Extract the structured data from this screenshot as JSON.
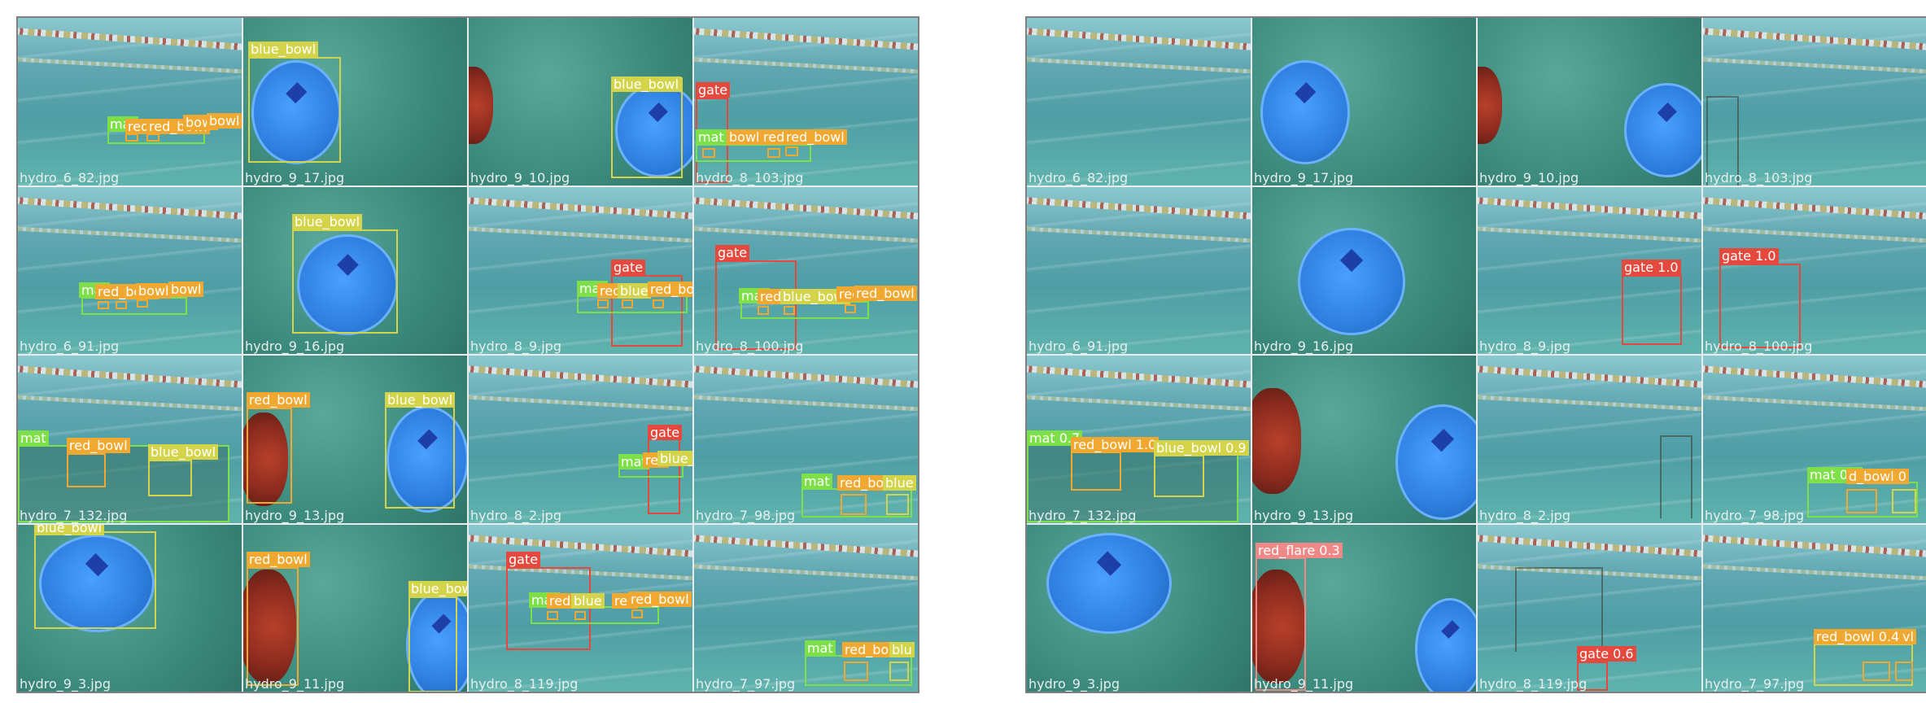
{
  "colors": {
    "blue_bowl": "#d4d44a",
    "red_bowl": "#f0a830",
    "mat": "#7ee048",
    "gate": "#e5483c",
    "red_flare": "#f08888"
  },
  "left": {
    "tiles": [
      {
        "filename": "hydro_6_82.jpg",
        "scene": "pool"
      },
      {
        "filename": "hydro_9_17.jpg",
        "scene": "green"
      },
      {
        "filename": "hydro_9_10.jpg",
        "scene": "green"
      },
      {
        "filename": "hydro_8_103.jpg",
        "scene": "pool"
      },
      {
        "filename": "hydro_6_91.jpg",
        "scene": "pool"
      },
      {
        "filename": "hydro_9_16.jpg",
        "scene": "green"
      },
      {
        "filename": "hydro_8_9.jpg",
        "scene": "pool"
      },
      {
        "filename": "hydro_8_100.jpg",
        "scene": "pool"
      },
      {
        "filename": "hydro_7_132.jpg",
        "scene": "pool"
      },
      {
        "filename": "hydro_9_13.jpg",
        "scene": "green"
      },
      {
        "filename": "hydro_8_2.jpg",
        "scene": "pool"
      },
      {
        "filename": "hydro_7_98.jpg",
        "scene": "pool"
      },
      {
        "filename": "hydro_9_3.jpg",
        "scene": "green"
      },
      {
        "filename": "hydro_9_11.jpg",
        "scene": "green"
      },
      {
        "filename": "hydro_8_119.jpg",
        "scene": "pool"
      },
      {
        "filename": "hydro_7_97.jpg",
        "scene": "pool"
      }
    ],
    "labels": [
      "mat",
      "red_bowl",
      "red_bowl",
      "bowl",
      "bowl",
      "blue_bowl",
      "blue_bowl",
      "gate",
      "mat",
      "bowl",
      "red",
      "red_bowl",
      "mat",
      "red_bowl",
      "bowl",
      "bowl",
      "blue_bowl",
      "mat",
      "red",
      "blue",
      "red_bowl",
      "gate",
      "gate",
      "mat",
      "red",
      "blue_bowl",
      "red",
      "red_bowl",
      "mat",
      "red_bowl",
      "blue_bowl",
      "red_bowl",
      "blue_bowl",
      "gate",
      "mat",
      "red",
      "blue_bowl",
      "mat",
      "red_bo",
      "blue",
      "blue_bowl",
      "red_bowl",
      "blue_bowl",
      "gate",
      "mat",
      "red",
      "blue",
      "red",
      "red_bowl",
      "mat",
      "red_bo",
      "blu"
    ]
  },
  "right": {
    "tiles": [
      {
        "filename": "hydro_6_82.jpg",
        "scene": "pool"
      },
      {
        "filename": "hydro_9_17.jpg",
        "scene": "green"
      },
      {
        "filename": "hydro_9_10.jpg",
        "scene": "green"
      },
      {
        "filename": "hydro_8_103.jpg",
        "scene": "pool"
      },
      {
        "filename": "hydro_6_91.jpg",
        "scene": "pool"
      },
      {
        "filename": "hydro_9_16.jpg",
        "scene": "green"
      },
      {
        "filename": "hydro_8_9.jpg",
        "scene": "pool"
      },
      {
        "filename": "hydro_8_100.jpg",
        "scene": "pool"
      },
      {
        "filename": "hydro_7_132.jpg",
        "scene": "pool"
      },
      {
        "filename": "hydro_9_13.jpg",
        "scene": "green"
      },
      {
        "filename": "hydro_8_2.jpg",
        "scene": "pool"
      },
      {
        "filename": "hydro_7_98.jpg",
        "scene": "pool"
      },
      {
        "filename": "hydro_9_3.jpg",
        "scene": "green"
      },
      {
        "filename": "hydro_9_11.jpg",
        "scene": "green"
      },
      {
        "filename": "hydro_8_119.jpg",
        "scene": "pool"
      },
      {
        "filename": "hydro_7_97.jpg",
        "scene": "pool"
      }
    ],
    "labels": [
      "gate 1.0",
      "gate 1.0",
      "mat 0.7",
      "red_bowl 1.0",
      "blue_bowl 0.9",
      "mat 0.7",
      "d_bowl 0",
      "red_flare 0.3",
      "gate 0.6",
      "red_bowl 0.4",
      "vl"
    ]
  }
}
